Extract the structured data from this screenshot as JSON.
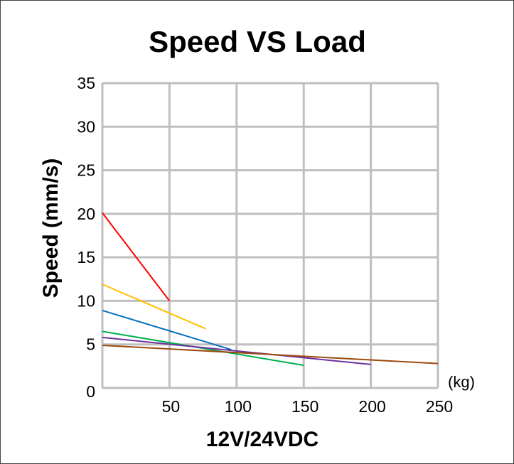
{
  "chart_data": {
    "type": "line",
    "title": "Speed VS Load",
    "xlabel": "12V/24VDC",
    "ylabel": "Speed (mm/s)",
    "x_unit": "(kg)",
    "xlim": [
      0,
      250
    ],
    "ylim": [
      0,
      35
    ],
    "x_ticks": [
      0,
      50,
      100,
      150,
      200,
      250
    ],
    "y_ticks": [
      0,
      5,
      10,
      15,
      20,
      25,
      30,
      35
    ],
    "grid": true,
    "series": [
      {
        "color": "#ff0000",
        "points": [
          [
            0,
            20.1
          ],
          [
            50,
            10
          ]
        ]
      },
      {
        "color": "#ffc000",
        "points": [
          [
            0,
            11.9
          ],
          [
            77,
            6.8
          ]
        ]
      },
      {
        "color": "#0070c0",
        "points": [
          [
            0,
            8.9
          ],
          [
            96,
            4.4
          ]
        ]
      },
      {
        "color": "#00b050",
        "points": [
          [
            0,
            6.5
          ],
          [
            150,
            2.6
          ]
        ]
      },
      {
        "color": "#7030a0",
        "points": [
          [
            0,
            5.8
          ],
          [
            200,
            2.7
          ]
        ]
      },
      {
        "color": "#9c4a0e",
        "points": [
          [
            0,
            4.9
          ],
          [
            250,
            2.8
          ]
        ]
      }
    ]
  }
}
